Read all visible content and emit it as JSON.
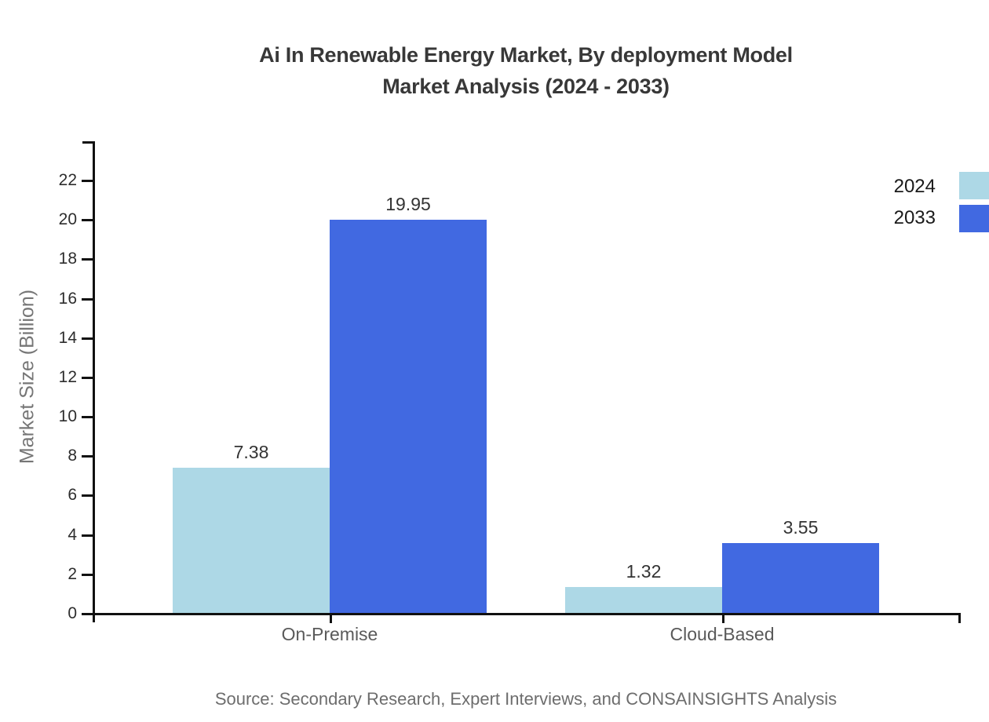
{
  "title": {
    "line1": "Ai In Renewable Energy Market, By deployment Model",
    "line2": "Market Analysis (2024 - 2033)"
  },
  "source": "Source: Secondary Research, Expert Interviews, and CONSAINSIGHTS Analysis",
  "chart_data": {
    "type": "bar",
    "categories": [
      "On-Premise",
      "Cloud-Based"
    ],
    "series": [
      {
        "name": "2024",
        "color": "#ADD8E6",
        "values": [
          7.38,
          1.32
        ]
      },
      {
        "name": "2033",
        "color": "#4169E1",
        "values": [
          19.95,
          3.55
        ]
      }
    ],
    "value_labels": [
      "7.38",
      "19.95",
      "1.32",
      "3.55"
    ],
    "title": "Ai In Renewable Energy Market, By deployment Model Market Analysis (2024 - 2033)",
    "xlabel": "",
    "ylabel": "Market Size (Billion)",
    "ylim": [
      0,
      23
    ],
    "yticks": [
      0,
      2,
      4,
      6,
      8,
      10,
      12,
      14,
      16,
      18,
      20,
      22
    ],
    "grid": false,
    "legend_position": "top-right",
    "value_label_decimals": 2
  }
}
